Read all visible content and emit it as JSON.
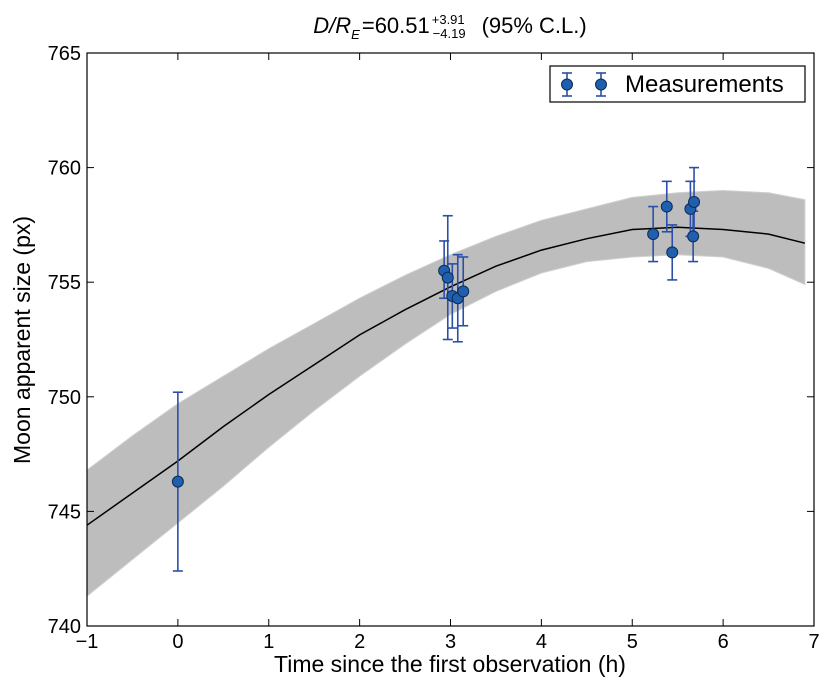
{
  "chart_data": {
    "type": "scatter",
    "title": {
      "lhs": "D/R",
      "lhs_sub": "E",
      "equals": "=",
      "value": "60.51",
      "err_plus": "+3.91",
      "err_minus": "−4.19",
      "suffix": "(95% C.L.)"
    },
    "xlabel": "Time since the first observation (h)",
    "ylabel": "Moon apparent size (px)",
    "xlim": [
      -1,
      7
    ],
    "ylim": [
      740,
      765
    ],
    "xticks": [
      -1,
      0,
      1,
      2,
      3,
      4,
      5,
      6,
      7
    ],
    "yticks": [
      740,
      745,
      750,
      755,
      760,
      765
    ],
    "xtick_labels": [
      "−1",
      "0",
      "1",
      "2",
      "3",
      "4",
      "5",
      "6",
      "7"
    ],
    "ytick_labels": [
      "740",
      "745",
      "750",
      "755",
      "760",
      "765"
    ],
    "legend": {
      "label": "Measurements",
      "position": "top-right"
    },
    "colors": {
      "points": "#1f5fae",
      "errorbars": "#2b4fa8",
      "fit_line": "#000000",
      "band": "#bdbdbd"
    },
    "series": [
      {
        "name": "Measurements",
        "points": [
          {
            "x": 0.0,
            "y": 746.3,
            "err_low": 3.9,
            "err_high": 3.9
          },
          {
            "x": 2.93,
            "y": 755.5,
            "err_low": 1.2,
            "err_high": 1.3
          },
          {
            "x": 2.97,
            "y": 755.2,
            "err_low": 2.7,
            "err_high": 2.7
          },
          {
            "x": 3.02,
            "y": 754.4,
            "err_low": 1.4,
            "err_high": 1.4
          },
          {
            "x": 3.08,
            "y": 754.3,
            "err_low": 1.9,
            "err_high": 1.9
          },
          {
            "x": 3.14,
            "y": 754.6,
            "err_low": 1.5,
            "err_high": 1.5
          },
          {
            "x": 5.23,
            "y": 757.1,
            "err_low": 1.2,
            "err_high": 1.2
          },
          {
            "x": 5.38,
            "y": 758.3,
            "err_low": 1.1,
            "err_high": 1.1
          },
          {
            "x": 5.44,
            "y": 756.3,
            "err_low": 1.2,
            "err_high": 1.2
          },
          {
            "x": 5.64,
            "y": 758.2,
            "err_low": 1.2,
            "err_high": 1.2
          },
          {
            "x": 5.67,
            "y": 757.0,
            "err_low": 1.1,
            "err_high": 1.1
          },
          {
            "x": 5.68,
            "y": 758.5,
            "err_low": 1.5,
            "err_high": 1.5
          }
        ]
      }
    ],
    "fit_curve": {
      "x": [
        -1,
        -0.5,
        0,
        0.5,
        1,
        1.5,
        2,
        2.5,
        3,
        3.5,
        4,
        4.5,
        5,
        5.5,
        6,
        6.5,
        6.9
      ],
      "y": [
        744.4,
        745.8,
        747.2,
        748.7,
        750.1,
        751.4,
        752.7,
        753.8,
        754.8,
        755.7,
        756.4,
        756.9,
        757.3,
        757.4,
        757.3,
        757.1,
        756.7
      ]
    },
    "band": {
      "x": [
        -1,
        -0.5,
        0,
        0.5,
        1,
        1.5,
        2,
        2.5,
        3,
        3.5,
        4,
        4.5,
        5,
        5.5,
        6,
        6.5,
        6.9
      ],
      "upper": [
        746.8,
        748.3,
        749.7,
        750.9,
        752.1,
        753.2,
        754.3,
        755.3,
        756.2,
        757.0,
        757.7,
        758.2,
        758.7,
        758.9,
        759.0,
        758.9,
        758.6
      ],
      "lower": [
        741.3,
        742.9,
        744.5,
        746.1,
        747.8,
        749.4,
        750.9,
        752.3,
        753.6,
        754.6,
        755.4,
        755.9,
        756.1,
        756.2,
        756.1,
        755.6,
        754.9
      ]
    }
  }
}
